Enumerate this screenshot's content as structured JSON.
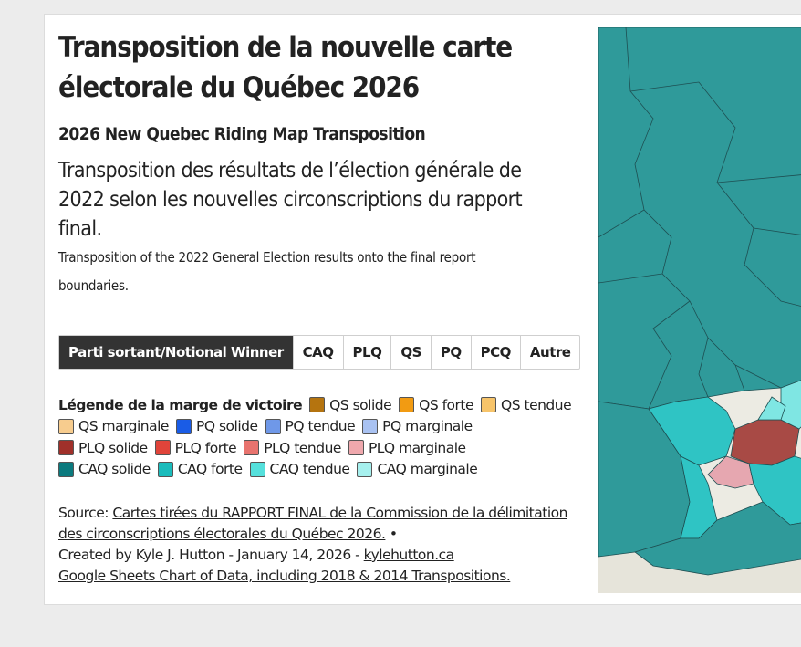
{
  "header": {
    "title_line1": "Transposition de la nouvelle carte",
    "title_line2": "électorale du Québec 2026",
    "subtitle": "2026 New Quebec Riding Map Transposition",
    "description_fr": "Transposition des résultats de l’élection générale de 2022 selon les nouvelles circonscriptions du rapport final.",
    "description_en": "Transposition of the 2022 General Election results onto the final report boundaries."
  },
  "tabs": [
    {
      "label": "Parti sortant/Notional Winner",
      "active": true
    },
    {
      "label": "CAQ",
      "active": false
    },
    {
      "label": "PLQ",
      "active": false
    },
    {
      "label": "QS",
      "active": false
    },
    {
      "label": "PQ",
      "active": false
    },
    {
      "label": "PCQ",
      "active": false
    },
    {
      "label": "Autre",
      "active": false
    }
  ],
  "legend": {
    "title": "Légende de la marge de victoire",
    "items": [
      {
        "label": "QS solide",
        "color": "#b5740f"
      },
      {
        "label": "QS forte",
        "color": "#f29b12"
      },
      {
        "label": "QS tendue",
        "color": "#f7c46a"
      },
      {
        "label": "QS marginale",
        "color": "#f7cc8e"
      },
      {
        "label": "PQ solide",
        "color": "#1a5ce6"
      },
      {
        "label": "PQ tendue",
        "color": "#6f98e8"
      },
      {
        "label": "PQ marginale",
        "color": "#a9c2f2"
      },
      {
        "label": "PLQ solide",
        "color": "#a0302a"
      },
      {
        "label": "PLQ forte",
        "color": "#e0443a"
      },
      {
        "label": "PLQ tendue",
        "color": "#e8736e"
      },
      {
        "label": "PLQ marginale",
        "color": "#efa8ad"
      },
      {
        "label": "CAQ solide",
        "color": "#0b7a7e"
      },
      {
        "label": "CAQ forte",
        "color": "#1bbcbc"
      },
      {
        "label": "CAQ tendue",
        "color": "#55e0dc"
      },
      {
        "label": "CAQ marginale",
        "color": "#a6f0ee"
      }
    ]
  },
  "source": {
    "prefix": "Source: ",
    "link1": "Cartes tirées du RAPPORT FINAL de la Commission de la délimitation des circonscriptions électorales du Québec 2026.",
    "sep": " • ",
    "created": "Created by Kyle J. Hutton - January 14, 2026 - ",
    "link2": "kylehutton.ca",
    "link3": "Google Sheets Chart of Data, including 2018 & 2014 Transpositions."
  },
  "map": {
    "colors": {
      "caq_dark": "#2f9a9a",
      "caq_mid": "#2fc4c4",
      "caq_light": "#7fe6e3",
      "plq_solid": "#a84a45",
      "plq_marginal": "#e6a7b0",
      "land": "#ecebe3",
      "water": "#cfdbe3"
    }
  }
}
